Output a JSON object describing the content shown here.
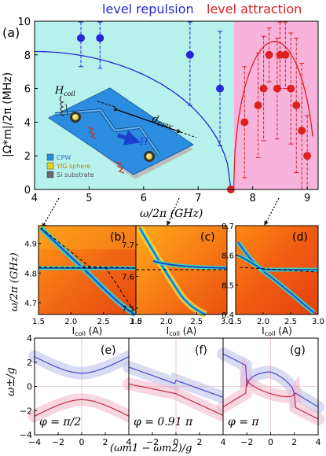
{
  "titles": {
    "left": "level repulsion",
    "right": "level attraction"
  },
  "colors": {
    "repulsion": "#2727d8",
    "attraction": "#dd2020",
    "cyan_bg": "#b7f1ec",
    "pink_bg": "#f8b3dc"
  },
  "panel_a": {
    "label": "(a)",
    "ylabel": "|Ω*m|/2π (MHz)",
    "xlabel": "ω/2π (GHz)",
    "xticks": [
      "4",
      "5",
      "6",
      "7",
      "8",
      "9"
    ],
    "yticks": [
      "0",
      "2",
      "4",
      "6",
      "8",
      "10"
    ],
    "inset": {
      "h_coil": "H",
      "h_coil_sub": "coil",
      "d_cpw": "d",
      "d_cpw_sub": "CPW",
      "h": "H",
      "legend": [
        "CPW",
        "YIG sphere",
        "Si substrate"
      ]
    }
  },
  "chart_data": [
    {
      "type": "scatter",
      "panel": "(a)",
      "xlabel": "ω/2π (GHz)",
      "ylabel": "|Ω*m|/2π (MHz)",
      "xlim": [
        4,
        9.2
      ],
      "ylim": [
        0,
        10
      ],
      "grid": false,
      "series": [
        {
          "name": "level repulsion",
          "color": "#2727d8",
          "points": [
            {
              "x": 4.85,
              "y": 9.0,
              "err": 1.7
            },
            {
              "x": 5.2,
              "y": 9.0,
              "err": 1.8
            },
            {
              "x": 6.85,
              "y": 8.0,
              "err": 3.0
            },
            {
              "x": 7.4,
              "y": 6.0,
              "err": 3.4
            }
          ],
          "curve": {
            "kind": "arc",
            "x": [
              4.0,
              7.6
            ],
            "peak": 8.2
          }
        },
        {
          "name": "level attraction",
          "color": "#dd2020",
          "points": [
            {
              "x": 7.85,
              "y": 4.0,
              "err": 3.3
            },
            {
              "x": 8.1,
              "y": 5.0,
              "err": 3.1
            },
            {
              "x": 8.2,
              "y": 6.0,
              "err": 3.1
            },
            {
              "x": 8.3,
              "y": 8.0,
              "err": 1.6
            },
            {
              "x": 8.45,
              "y": 6.0,
              "err": 3.0
            },
            {
              "x": 8.5,
              "y": 8.0,
              "err": 2.0
            },
            {
              "x": 8.6,
              "y": 8.0,
              "err": 2.0
            },
            {
              "x": 8.7,
              "y": 6.0,
              "err": 3.3
            },
            {
              "x": 8.8,
              "y": 5.0,
              "err": 4.0
            },
            {
              "x": 8.9,
              "y": 3.5,
              "err": 4.0
            },
            {
              "x": 9.0,
              "y": 2.0,
              "err": 2.4
            }
          ],
          "curve": {
            "kind": "dome",
            "x": [
              7.6,
              9.1
            ],
            "peak": 8.8
          }
        },
        {
          "name": "",
          "color": "#dd2020",
          "points": [
            {
              "x": 7.6,
              "y": 0,
              "err": 0
            }
          ]
        }
      ]
    },
    {
      "type": "heatmap",
      "panels": [
        {
          "label": "(b)",
          "xticks": [
            "1.5",
            "2.0",
            "2.5",
            "3.0"
          ],
          "yticks": [
            "4.7",
            "4.8",
            "4.9"
          ],
          "ylim": [
            4.66,
            4.96
          ]
        },
        {
          "label": "(c)",
          "xticks": [
            "1.5",
            "2.0",
            "2.5",
            "3.0"
          ],
          "yticks": [
            "7.5",
            "7.6",
            "7.7"
          ],
          "ylim": [
            7.48,
            7.76
          ]
        },
        {
          "label": "(d)",
          "xticks": [
            "1.5",
            "2.0",
            "2.5",
            "3.0"
          ],
          "yticks": [
            "8.4",
            "8.5",
            "8.6",
            "8.7"
          ],
          "ylim": [
            8.4,
            8.7
          ]
        }
      ],
      "ylabel": "ω/2π (GHz)",
      "xlabel": "Icoil (A)"
    },
    {
      "type": "line",
      "ylabel": "ω±/g",
      "xlabel": "(ωm1 − ωm2)/g",
      "xlim": [
        -4,
        4
      ],
      "ylim": [
        -4,
        4
      ],
      "xticks": [
        "−4",
        "−2",
        "0",
        "2",
        "4"
      ],
      "yticks": [
        "−4",
        "−2",
        "0",
        "2",
        "4"
      ],
      "panels": [
        {
          "label": "(e)",
          "phi": "φ = π/2"
        },
        {
          "label": "(f)",
          "phi": "φ = 0.91 π"
        },
        {
          "label": "(g)",
          "phi": "φ = π"
        }
      ]
    }
  ]
}
